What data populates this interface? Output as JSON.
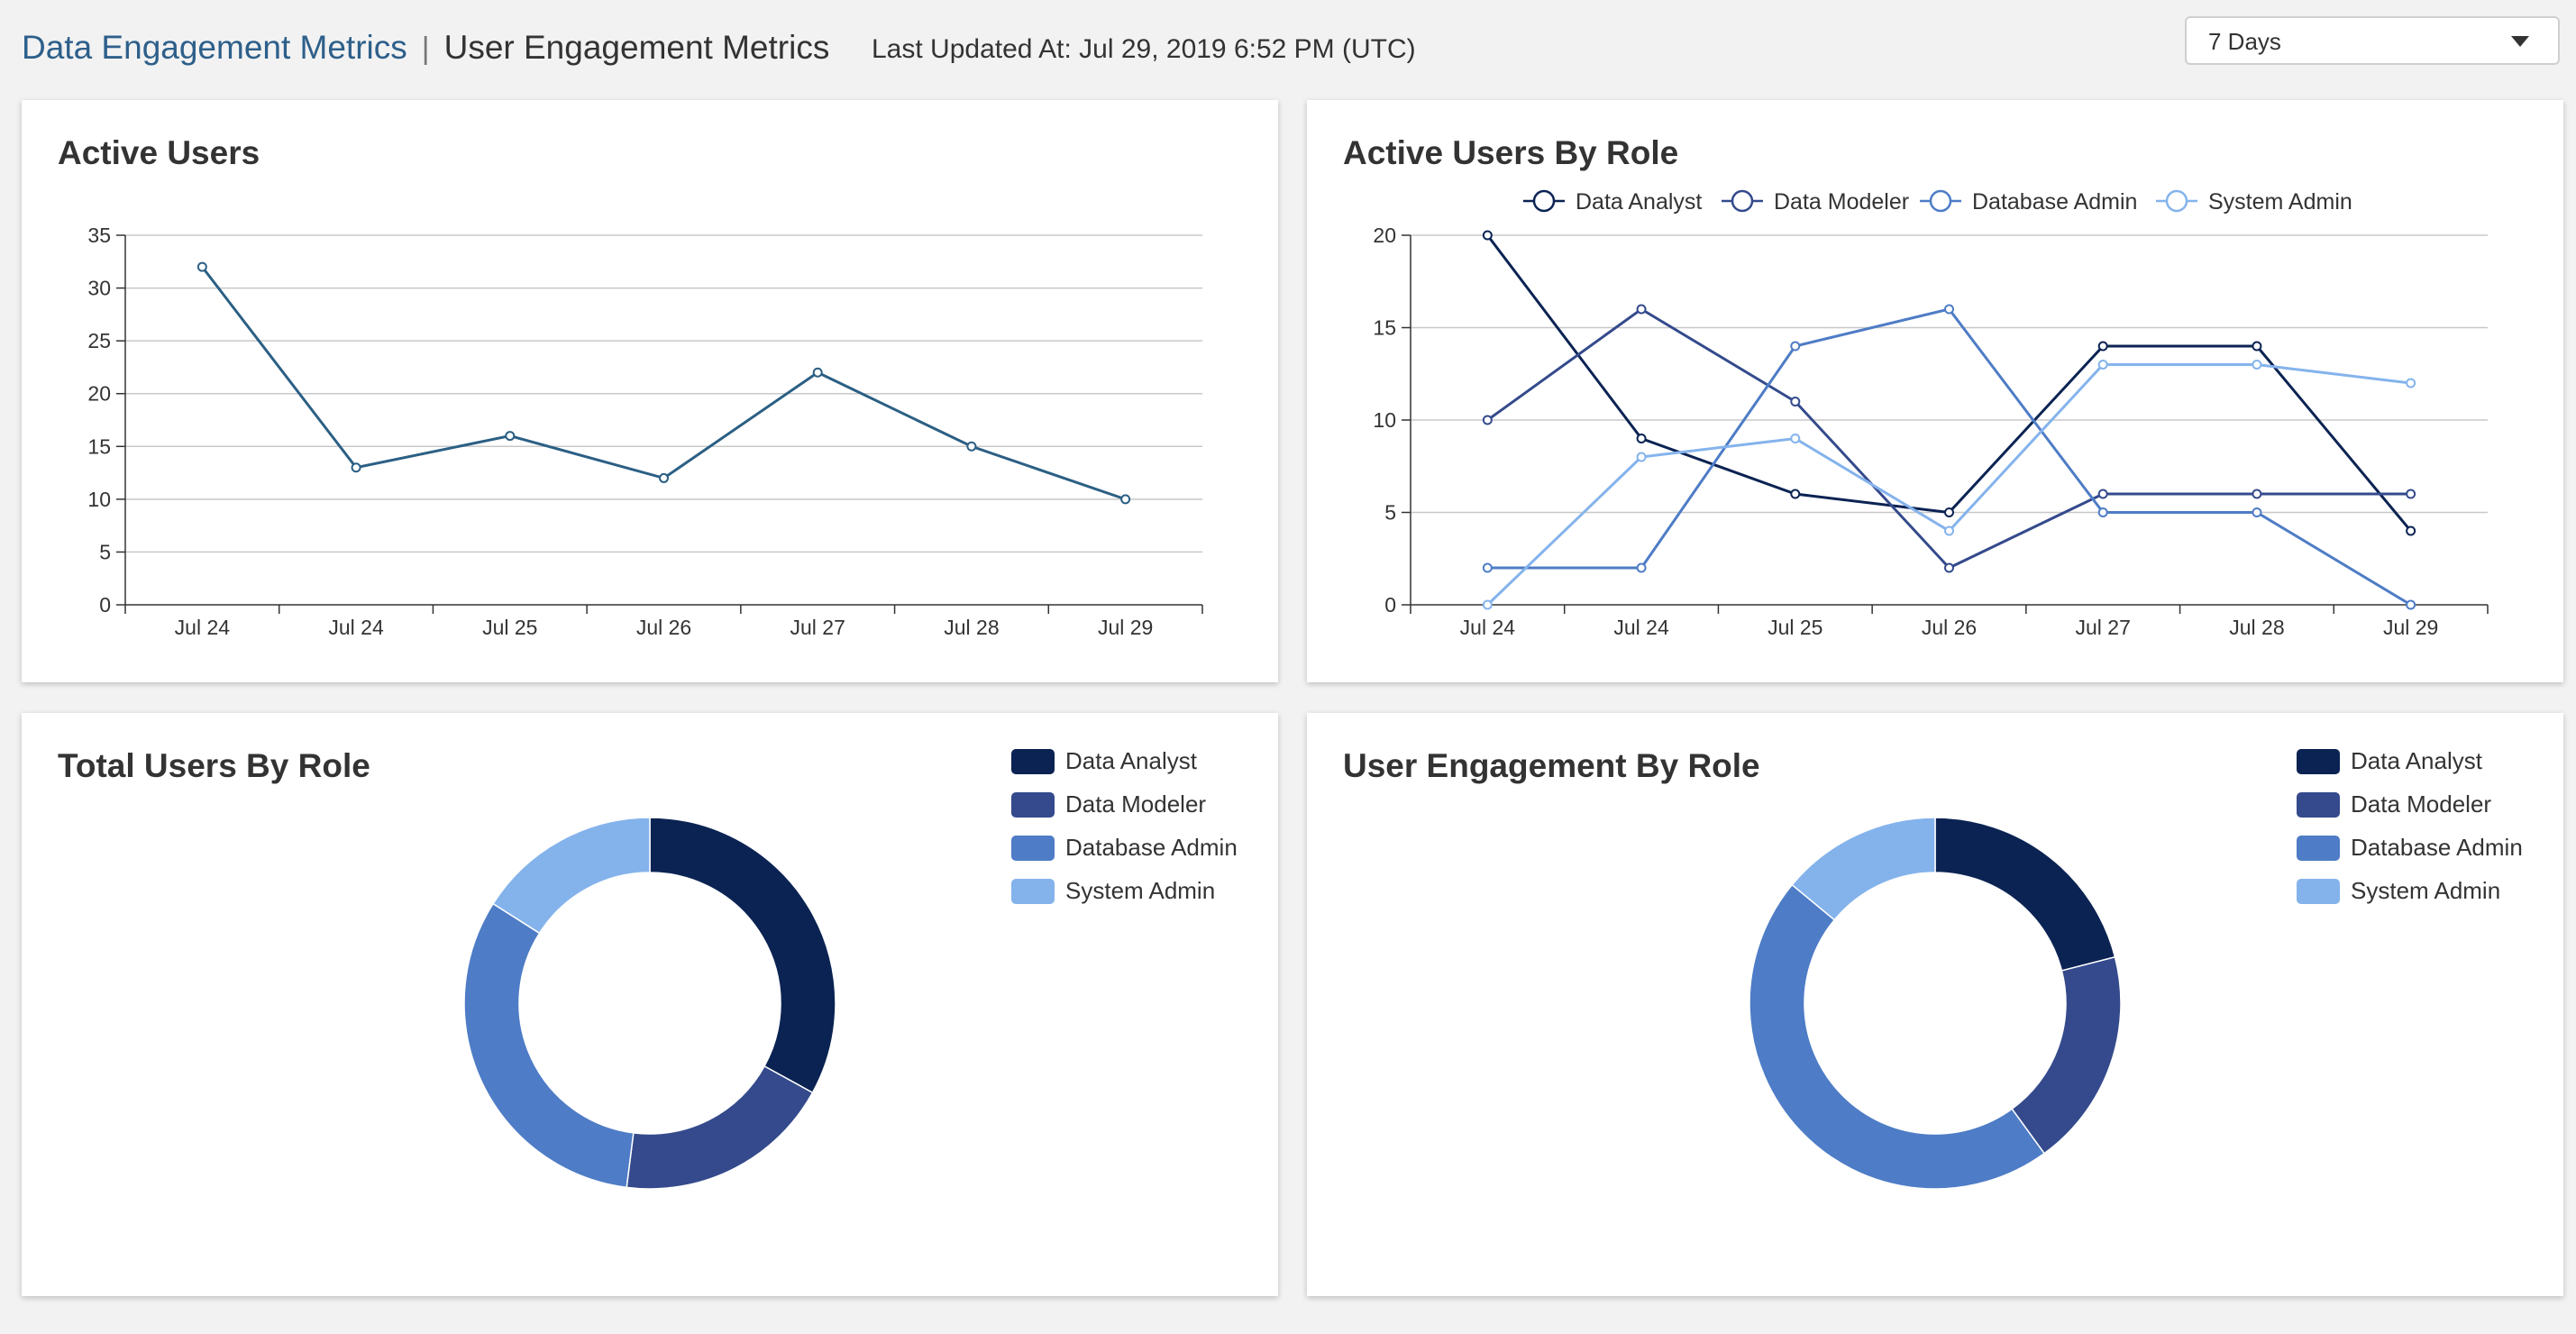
{
  "header": {
    "breadcrumb_parent": "Data Engagement Metrics",
    "breadcrumb_separator": "|",
    "breadcrumb_current": "User Engagement Metrics",
    "last_updated": "Last Updated At: Jul 29, 2019 6:52 PM (UTC)",
    "range_value": "7 Days"
  },
  "colors": {
    "link": "#2d5f8a",
    "line_single": "#2b5f84",
    "grid": "#c8c8c8",
    "axis": "#333333",
    "roles": [
      "#0b2353",
      "#344a8c",
      "#4e7cc6",
      "#84b3ec"
    ]
  },
  "roles": [
    "Data Analyst",
    "Data Modeler",
    "Database Admin",
    "System Admin"
  ],
  "cards": {
    "active_users": {
      "title": "Active Users"
    },
    "active_by_role": {
      "title": "Active Users By Role"
    },
    "total_by_role": {
      "title": "Total Users By Role"
    },
    "engagement_by_role": {
      "title": "User Engagement By Role"
    }
  },
  "chart_data": [
    {
      "type": "line",
      "title": "Active Users",
      "categories": [
        "Jul 24",
        "Jul 24",
        "Jul 25",
        "Jul 26",
        "Jul 27",
        "Jul 28",
        "Jul 29"
      ],
      "values": [
        32,
        13,
        16,
        12,
        22,
        15,
        10
      ],
      "ylim": [
        0,
        35
      ],
      "yticks": [
        0,
        5,
        10,
        15,
        20,
        25,
        30,
        35
      ],
      "grid": true
    },
    {
      "type": "line",
      "title": "Active Users By Role",
      "categories": [
        "Jul 24",
        "Jul 24",
        "Jul 25",
        "Jul 26",
        "Jul 27",
        "Jul 28",
        "Jul 29"
      ],
      "series": [
        {
          "name": "Data Analyst",
          "values": [
            20,
            9,
            6,
            5,
            14,
            14,
            4
          ]
        },
        {
          "name": "Data Modeler",
          "values": [
            10,
            16,
            11,
            2,
            6,
            6,
            6
          ]
        },
        {
          "name": "Database Admin",
          "values": [
            2,
            2,
            14,
            16,
            5,
            5,
            0
          ]
        },
        {
          "name": "System Admin",
          "values": [
            0,
            8,
            9,
            4,
            13,
            13,
            12
          ]
        }
      ],
      "ylim": [
        0,
        20
      ],
      "yticks": [
        0,
        5,
        10,
        15,
        20
      ],
      "grid": true,
      "legend": "top"
    },
    {
      "type": "pie",
      "title": "Total Users By Role",
      "labels": [
        "Data Analyst",
        "Data Modeler",
        "Database Admin",
        "System Admin"
      ],
      "values": [
        33,
        19,
        32,
        16
      ],
      "donut": true,
      "legend": "top-right"
    },
    {
      "type": "pie",
      "title": "User Engagement By Role",
      "labels": [
        "Data Analyst",
        "Data Modeler",
        "Database Admin",
        "System Admin"
      ],
      "values": [
        21,
        19,
        46,
        14
      ],
      "donut": true,
      "legend": "top-right"
    }
  ]
}
